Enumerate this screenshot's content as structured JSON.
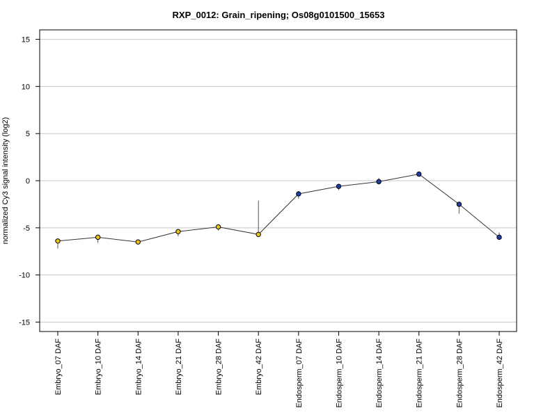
{
  "chart_data": {
    "type": "line",
    "title": "RXP_0012: Grain_ripening; Os08g0101500_15653",
    "xlabel": "",
    "ylabel": "normalized Cy3 signal intensity (log2)",
    "ylim": [
      -16,
      16
    ],
    "yticks": [
      15,
      10,
      5,
      0,
      -5,
      -10,
      -15
    ],
    "grid": true,
    "categories": [
      "Embryo_07 DAF",
      "Embryo_10 DAF",
      "Embryo_14 DAF",
      "Embryo_21 DAF",
      "Embryo_28 DAF",
      "Embryo_42 DAF",
      "Endosperm_07 DAF",
      "Endosperm_10 DAF",
      "Endosperm_14 DAF",
      "Endosperm_21 DAF",
      "Endosperm_28 DAF",
      "Endosperm_42 DAF"
    ],
    "series": [
      {
        "values": [
          -6.4,
          -6.0,
          -6.5,
          -5.4,
          -4.9,
          -5.7,
          -1.4,
          -0.6,
          -0.1,
          0.7,
          -2.5,
          -6.0
        ],
        "error_low": [
          -7.2,
          -6.6,
          -6.5,
          -5.9,
          -5.3,
          -5.7,
          -1.9,
          -1.0,
          -0.4,
          0.6,
          -3.5,
          -6.0
        ],
        "error_high": [
          -6.4,
          -6.0,
          -6.5,
          -5.4,
          -4.9,
          -2.1,
          -1.1,
          -0.5,
          0.3,
          0.8,
          -2.4,
          -5.5
        ],
        "point_colors": [
          "#e8c21c",
          "#e8c21c",
          "#e8c21c",
          "#e8c21c",
          "#e8c21c",
          "#e8c21c",
          "#1f3fa8",
          "#1f3fa8",
          "#1f3fa8",
          "#1f3fa8",
          "#1f3fa8",
          "#1f3fa8"
        ]
      }
    ]
  },
  "colors": {
    "embryo_point": "#e8c21c",
    "endosperm_point": "#1f3fa8",
    "line": "#333333",
    "grid": "#c8c8c8"
  }
}
